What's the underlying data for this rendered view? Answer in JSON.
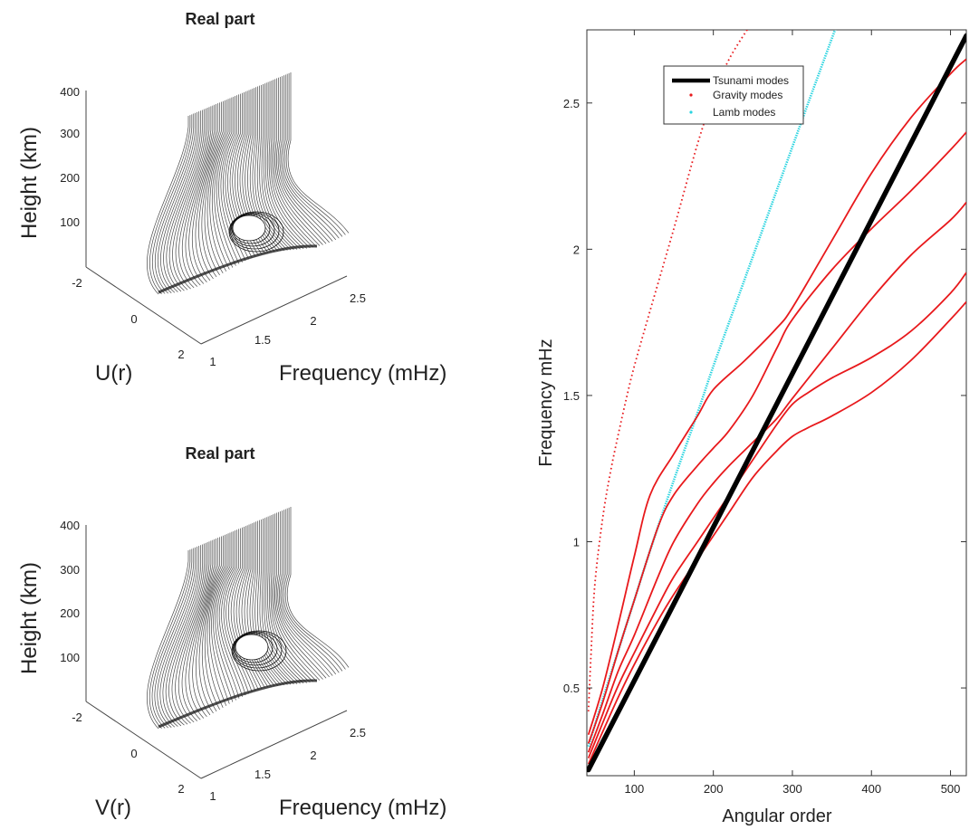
{
  "chart_data": [
    {
      "type": "surface",
      "title": "Real part",
      "xlabel": "Frequency (mHz)",
      "ylabel": "U(r)",
      "zlabel": "Height (km)",
      "xticks": [
        "1",
        "1.5",
        "2",
        "2.5"
      ],
      "yticks": [
        "-2",
        "0",
        "2"
      ],
      "zticks": [
        "100",
        "200",
        "300",
        "400"
      ]
    },
    {
      "type": "surface",
      "title": "Real part",
      "xlabel": "Frequency (mHz)",
      "ylabel": "V(r)",
      "zlabel": "Height (km)",
      "xticks": [
        "1",
        "1.5",
        "2",
        "2.5"
      ],
      "yticks": [
        "-2",
        "0",
        "2"
      ],
      "zticks": [
        "100",
        "200",
        "300",
        "400"
      ]
    },
    {
      "type": "line",
      "title": "",
      "xlabel": "Angular order",
      "ylabel": "Frequency mHz",
      "xlim": [
        40,
        520
      ],
      "ylim": [
        0.2,
        2.75
      ],
      "xticks": [
        100,
        200,
        300,
        400,
        500
      ],
      "yticks": [
        0.5,
        1,
        1.5,
        2,
        2.5
      ],
      "legend_position": "top-left",
      "legend": [
        {
          "label": "Tsunami modes",
          "color": "#000000",
          "style": "thick-line"
        },
        {
          "label": "Gravity modes",
          "color": "#e8191c",
          "style": "dots"
        },
        {
          "label": "Lamb modes",
          "color": "#2ad4e0",
          "style": "dots"
        }
      ],
      "series": [
        {
          "name": "Tsunami modes",
          "color": "#000000",
          "x": [
            42,
            520
          ],
          "y": [
            0.22,
            2.73
          ]
        },
        {
          "name": "Lamb modes",
          "color": "#2ad4e0",
          "x": [
            42,
            60,
            80,
            100,
            120,
            150,
            180,
            200,
            240,
            280,
            320,
            358
          ],
          "y": [
            0.3,
            0.46,
            0.63,
            0.8,
            0.97,
            1.21,
            1.44,
            1.6,
            1.9,
            2.2,
            2.5,
            2.78
          ]
        },
        {
          "name": "Gravity modes",
          "color": "#e8191c",
          "x": [
            42,
            45,
            50,
            60,
            70,
            80,
            90,
            100,
            120,
            150,
            180,
            200,
            220,
            250
          ],
          "y": [
            0.42,
            0.6,
            0.85,
            1.08,
            1.24,
            1.37,
            1.49,
            1.6,
            1.79,
            2.07,
            2.36,
            2.52,
            2.65,
            2.78
          ]
        },
        {
          "name": "Gravity modes",
          "color": "#e8191c",
          "x": [
            42,
            60,
            80,
            100,
            120,
            150,
            180,
            200,
            240,
            280,
            300,
            350,
            400,
            450,
            500,
            520
          ],
          "y": [
            0.34,
            0.5,
            0.72,
            0.95,
            1.16,
            1.3,
            1.43,
            1.52,
            1.62,
            1.73,
            1.8,
            2.03,
            2.26,
            2.45,
            2.6,
            2.65
          ]
        },
        {
          "name": "Gravity modes",
          "color": "#e8191c",
          "x": [
            42,
            60,
            80,
            100,
            130,
            150,
            180,
            200,
            220,
            250,
            280,
            300,
            350,
            400,
            450,
            500,
            520
          ],
          "y": [
            0.31,
            0.45,
            0.63,
            0.8,
            1.05,
            1.16,
            1.26,
            1.32,
            1.38,
            1.5,
            1.66,
            1.76,
            1.93,
            2.07,
            2.2,
            2.34,
            2.4
          ]
        },
        {
          "name": "Gravity modes",
          "color": "#e8191c",
          "x": [
            42,
            60,
            80,
            100,
            130,
            150,
            180,
            200,
            220,
            250,
            280,
            300,
            350,
            400,
            450,
            500,
            520
          ],
          "y": [
            0.28,
            0.41,
            0.56,
            0.68,
            0.88,
            1.0,
            1.13,
            1.2,
            1.26,
            1.34,
            1.42,
            1.49,
            1.66,
            1.83,
            1.98,
            2.1,
            2.16
          ]
        },
        {
          "name": "Gravity modes",
          "color": "#e8191c",
          "x": [
            42,
            60,
            80,
            100,
            130,
            150,
            180,
            200,
            220,
            250,
            280,
            300,
            320,
            350,
            400,
            450,
            500,
            520
          ],
          "y": [
            0.26,
            0.38,
            0.51,
            0.62,
            0.78,
            0.88,
            1.0,
            1.08,
            1.16,
            1.28,
            1.4,
            1.47,
            1.51,
            1.56,
            1.63,
            1.72,
            1.85,
            1.92
          ]
        },
        {
          "name": "Gravity modes",
          "color": "#e8191c",
          "x": [
            42,
            60,
            80,
            100,
            130,
            150,
            180,
            200,
            220,
            250,
            280,
            300,
            320,
            350,
            400,
            450,
            500,
            520
          ],
          "y": [
            0.24,
            0.35,
            0.47,
            0.58,
            0.73,
            0.82,
            0.94,
            1.02,
            1.1,
            1.22,
            1.31,
            1.36,
            1.39,
            1.43,
            1.51,
            1.62,
            1.76,
            1.82
          ]
        }
      ]
    }
  ]
}
